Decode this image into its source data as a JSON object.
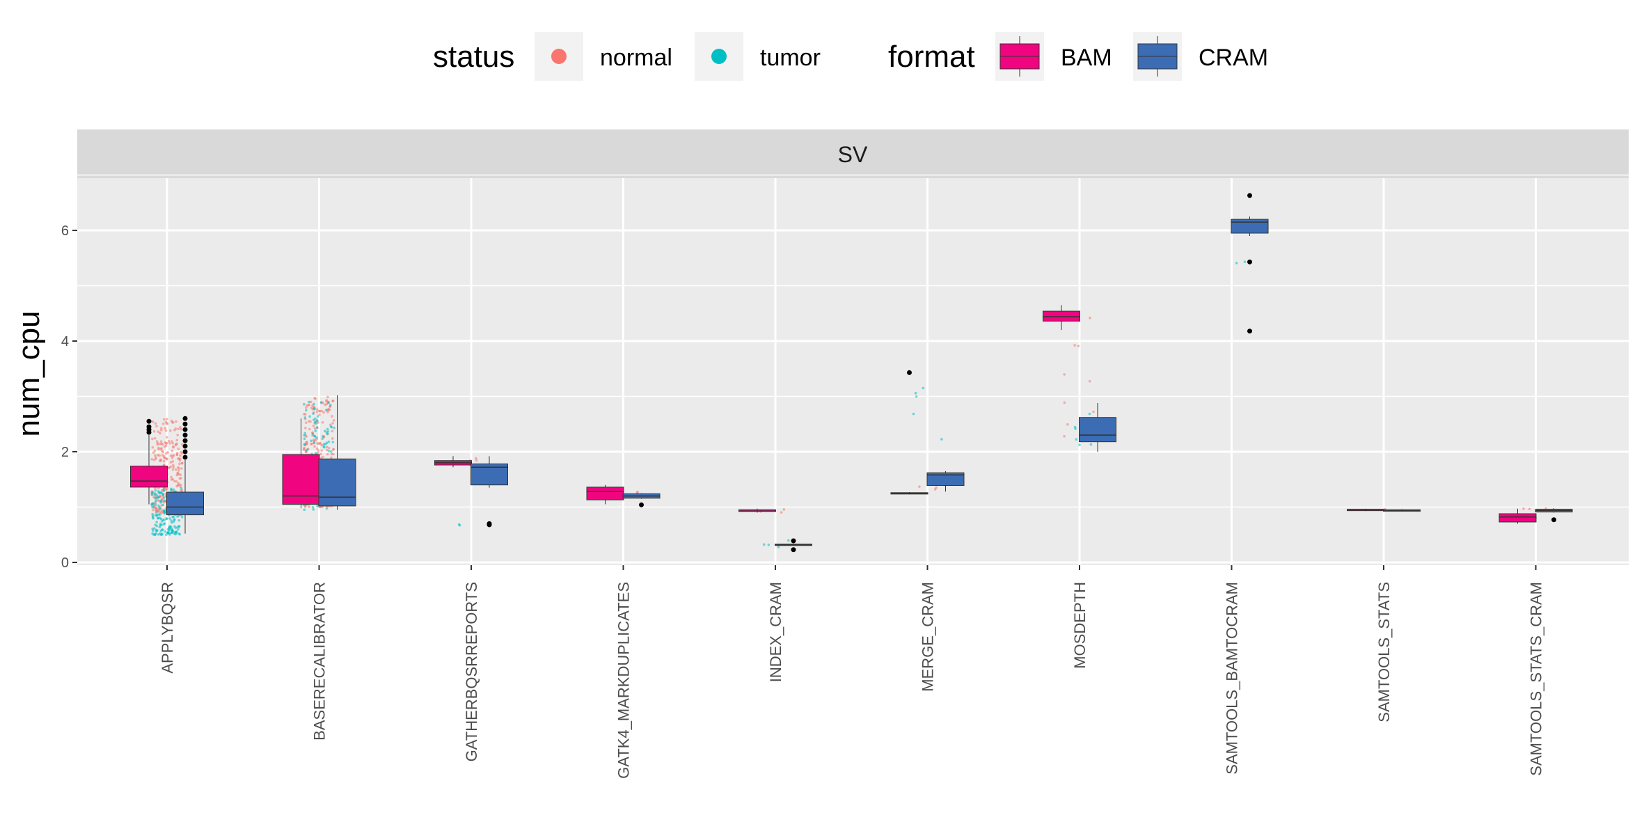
{
  "legend": {
    "status_title": "status",
    "status_items": [
      {
        "label": "normal",
        "color": "#F8766D"
      },
      {
        "label": "tumor",
        "color": "#00BFC4"
      }
    ],
    "format_title": "format",
    "format_items": [
      {
        "label": "BAM",
        "color": "#F0047F"
      },
      {
        "label": "CRAM",
        "color": "#3C6DB4"
      }
    ]
  },
  "chart_data": {
    "type": "boxplot",
    "facet": "SV",
    "ylabel": "num_cpu",
    "xlabel": "",
    "ylim": [
      0,
      7
    ],
    "yticks": [
      0,
      2,
      4,
      6
    ],
    "grid": true,
    "legend_position": "top",
    "categories": [
      "APPLYBQSR",
      "BASERECALIBRATOR",
      "GATHERBQSRREPORTS",
      "GATK4_MARKDUPLICATES",
      "INDEX_CRAM",
      "MERGE_CRAM",
      "MOSDEPTH",
      "SAMTOOLS_BAMTOCRAM",
      "SAMTOOLS_STATS",
      "SAMTOOLS_STATS_CRAM"
    ],
    "series": [
      {
        "name": "BAM",
        "color": "#F0047F",
        "boxes": [
          {
            "category": "APPLYBQSR",
            "q1": 1.36,
            "median": 1.47,
            "q3": 1.74,
            "whisker_low": 1.05,
            "whisker_high": 2.3,
            "outliers": [
              2.35,
              2.4,
              2.45,
              2.55
            ]
          },
          {
            "category": "BASERECALIBRATOR",
            "q1": 1.05,
            "median": 1.2,
            "q3": 1.95,
            "whisker_low": 0.98,
            "whisker_high": 2.6,
            "outliers": []
          },
          {
            "category": "GATHERBQSRREPORTS",
            "q1": 1.76,
            "median": 1.8,
            "q3": 1.84,
            "whisker_low": 1.72,
            "whisker_high": 1.92,
            "outliers": []
          },
          {
            "category": "GATK4_MARKDUPLICATES",
            "q1": 1.13,
            "median": 1.28,
            "q3": 1.36,
            "whisker_low": 1.05,
            "whisker_high": 1.4,
            "outliers": []
          },
          {
            "category": "INDEX_CRAM",
            "q1": 0.92,
            "median": 0.93,
            "q3": 0.95,
            "whisker_low": 0.9,
            "whisker_high": 0.97,
            "outliers": []
          },
          {
            "category": "MERGE_CRAM",
            "q1": 1.24,
            "median": 1.25,
            "q3": 1.26,
            "whisker_low": 1.23,
            "whisker_high": 1.27,
            "outliers": [
              3.43
            ]
          },
          {
            "category": "MOSDEPTH",
            "q1": 4.36,
            "median": 4.44,
            "q3": 4.54,
            "whisker_low": 4.2,
            "whisker_high": 4.65,
            "outliers": []
          },
          {
            "category": "SAMTOOLS_STATS",
            "q1": 0.94,
            "median": 0.95,
            "q3": 0.96,
            "whisker_low": 0.93,
            "whisker_high": 0.97,
            "outliers": []
          },
          {
            "category": "SAMTOOLS_STATS_CRAM",
            "q1": 0.73,
            "median": 0.82,
            "q3": 0.88,
            "whisker_low": 0.7,
            "whisker_high": 0.97,
            "outliers": []
          }
        ]
      },
      {
        "name": "CRAM",
        "color": "#3C6DB4",
        "boxes": [
          {
            "category": "APPLYBQSR",
            "q1": 0.86,
            "median": 1.0,
            "q3": 1.27,
            "whisker_low": 0.52,
            "whisker_high": 1.85,
            "outliers": [
              1.9,
              2.0,
              2.1,
              2.2,
              2.3,
              2.4,
              2.5,
              2.6
            ]
          },
          {
            "category": "BASERECALIBRATOR",
            "q1": 1.02,
            "median": 1.18,
            "q3": 1.87,
            "whisker_low": 0.95,
            "whisker_high": 3.02,
            "outliers": []
          },
          {
            "category": "GATHERBQSRREPORTS",
            "q1": 1.4,
            "median": 1.72,
            "q3": 1.78,
            "whisker_low": 1.35,
            "whisker_high": 1.92,
            "outliers": [
              0.68,
              0.7
            ]
          },
          {
            "category": "GATK4_MARKDUPLICATES",
            "q1": 1.16,
            "median": 1.2,
            "q3": 1.24,
            "whisker_low": 1.15,
            "whisker_high": 1.25,
            "outliers": [
              1.04
            ]
          },
          {
            "category": "INDEX_CRAM",
            "q1": 0.31,
            "median": 0.32,
            "q3": 0.33,
            "whisker_low": 0.3,
            "whisker_high": 0.34,
            "outliers": [
              0.39,
              0.23
            ]
          },
          {
            "category": "MERGE_CRAM",
            "q1": 1.39,
            "median": 1.58,
            "q3": 1.62,
            "whisker_low": 1.28,
            "whisker_high": 1.65,
            "outliers": []
          },
          {
            "category": "MOSDEPTH",
            "q1": 2.18,
            "median": 2.3,
            "q3": 2.62,
            "whisker_low": 2.0,
            "whisker_high": 2.88,
            "outliers": []
          },
          {
            "category": "SAMTOOLS_BAMTOCRAM",
            "q1": 5.95,
            "median": 6.15,
            "q3": 6.2,
            "whisker_low": 5.9,
            "whisker_high": 6.25,
            "outliers": [
              6.63,
              5.43,
              4.18
            ]
          },
          {
            "category": "SAMTOOLS_STATS",
            "q1": 0.93,
            "median": 0.94,
            "q3": 0.95,
            "whisker_low": 0.92,
            "whisker_high": 0.96,
            "outliers": []
          },
          {
            "category": "SAMTOOLS_STATS_CRAM",
            "q1": 0.91,
            "median": 0.94,
            "q3": 0.96,
            "whisker_low": 0.9,
            "whisker_high": 0.98,
            "outliers": [
              0.77
            ]
          }
        ]
      }
    ],
    "jitter_points": [
      {
        "category": "APPLYBQSR",
        "status": "normal",
        "y_min": 0.9,
        "y_max": 2.6,
        "count": 260
      },
      {
        "category": "APPLYBQSR",
        "status": "tumor",
        "y_min": 0.5,
        "y_max": 1.35,
        "count": 180
      },
      {
        "category": "BASERECALIBRATOR",
        "status": "normal",
        "y_min": 1.0,
        "y_max": 3.0,
        "count": 240
      },
      {
        "category": "BASERECALIBRATOR",
        "status": "tumor",
        "y_min": 0.95,
        "y_max": 2.9,
        "count": 120
      },
      {
        "category": "GATHERBQSRREPORTS",
        "status": "normal",
        "y_min": 1.7,
        "y_max": 1.92,
        "count": 4
      },
      {
        "category": "GATHERBQSRREPORTS",
        "status": "tumor",
        "y_min": 0.66,
        "y_max": 0.7,
        "count": 2
      },
      {
        "category": "GATK4_MARKDUPLICATES",
        "status": "normal",
        "y_min": 1.15,
        "y_max": 1.3,
        "count": 3
      },
      {
        "category": "INDEX_CRAM",
        "status": "normal",
        "y_min": 0.9,
        "y_max": 0.96,
        "count": 3
      },
      {
        "category": "INDEX_CRAM",
        "status": "tumor",
        "y_min": 0.25,
        "y_max": 0.4,
        "count": 4
      },
      {
        "category": "MERGE_CRAM",
        "status": "normal",
        "y_min": 1.3,
        "y_max": 1.65,
        "count": 3
      },
      {
        "category": "MERGE_CRAM",
        "status": "tumor",
        "y_min": 1.25,
        "y_max": 3.45,
        "count": 5
      },
      {
        "category": "MOSDEPTH",
        "status": "normal",
        "y_min": 2.0,
        "y_max": 4.65,
        "count": 10
      },
      {
        "category": "MOSDEPTH",
        "status": "tumor",
        "y_min": 2.1,
        "y_max": 2.9,
        "count": 6
      },
      {
        "category": "SAMTOOLS_BAMTOCRAM",
        "status": "tumor",
        "y_min": 5.4,
        "y_max": 5.45,
        "count": 2
      },
      {
        "category": "SAMTOOLS_STATS",
        "status": "normal",
        "y_min": 0.93,
        "y_max": 0.96,
        "count": 2
      },
      {
        "category": "SAMTOOLS_STATS_CRAM",
        "status": "normal",
        "y_min": 0.75,
        "y_max": 0.98,
        "count": 4
      }
    ]
  }
}
